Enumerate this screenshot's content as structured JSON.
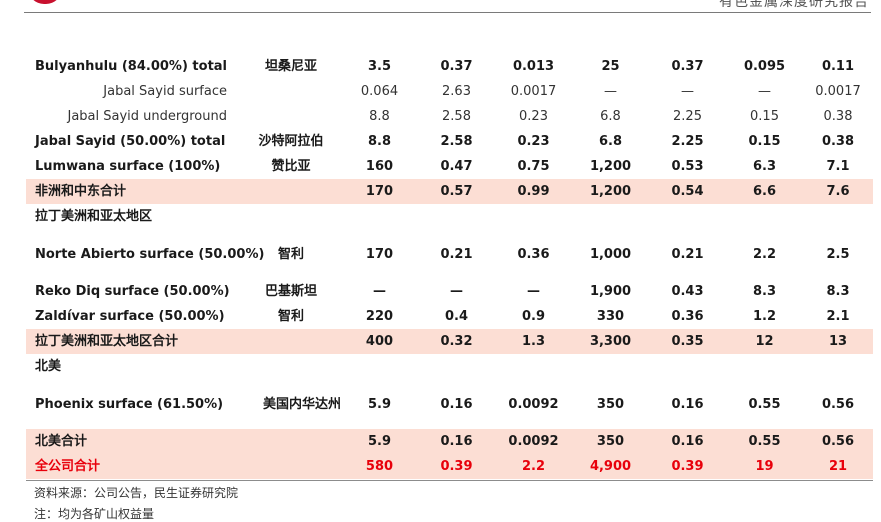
{
  "header": {
    "right_text": "有色金属深度研究报告"
  },
  "rows": [
    {
      "type": "bold",
      "name": "Bulyanhulu (84.00%) total",
      "country": "坦桑尼亚",
      "values": [
        "3.5",
        "0.37",
        "0.013",
        "25",
        "0.37",
        "0.095",
        "0.11"
      ]
    },
    {
      "type": "indent",
      "name": "Jabal Sayid surface",
      "country": "",
      "values": [
        "0.064",
        "2.63",
        "0.0017",
        "—",
        "—",
        "—",
        "0.0017"
      ]
    },
    {
      "type": "indent",
      "name": "Jabal Sayid underground",
      "country": "",
      "values": [
        "8.8",
        "2.58",
        "0.23",
        "6.8",
        "2.25",
        "0.15",
        "0.38"
      ]
    },
    {
      "type": "bold",
      "name": "Jabal Sayid (50.00%) total",
      "country": "沙特阿拉伯",
      "values": [
        "8.8",
        "2.58",
        "0.23",
        "6.8",
        "2.25",
        "0.15",
        "0.38"
      ]
    },
    {
      "type": "bold",
      "name": "Lumwana surface (100%)",
      "country": "赞比亚",
      "values": [
        "160",
        "0.47",
        "0.75",
        "1,200",
        "0.53",
        "6.3",
        "7.1"
      ]
    },
    {
      "type": "subtotal",
      "name": "非洲和中东合计",
      "country": "",
      "values": [
        "170",
        "0.57",
        "0.99",
        "1,200",
        "0.54",
        "6.6",
        "7.6"
      ]
    },
    {
      "type": "section",
      "name": "拉丁美洲和亚太地区",
      "country": "",
      "values": [
        "",
        "",
        "",
        "",
        "",
        "",
        ""
      ]
    },
    {
      "type": "bold-tall",
      "name": "Norte Abierto surface (50.00%)",
      "country": "智利",
      "values": [
        "170",
        "0.21",
        "0.36",
        "1,000",
        "0.21",
        "2.2",
        "2.5"
      ]
    },
    {
      "type": "bold",
      "name": "Reko Diq surface (50.00%)",
      "country": "巴基斯坦",
      "values": [
        "—",
        "—",
        "—",
        "1,900",
        "0.43",
        "8.3",
        "8.3"
      ]
    },
    {
      "type": "bold",
      "name": "Zaldívar surface (50.00%)",
      "country": "智利",
      "values": [
        "220",
        "0.4",
        "0.9",
        "330",
        "0.36",
        "1.2",
        "2.1"
      ]
    },
    {
      "type": "subtotal",
      "name": "拉丁美洲和亚太地区合计",
      "country": "",
      "values": [
        "400",
        "0.32",
        "1.3",
        "3,300",
        "0.35",
        "12",
        "13"
      ]
    },
    {
      "type": "section",
      "name": "北美",
      "country": "",
      "values": [
        "",
        "",
        "",
        "",
        "",
        "",
        ""
      ]
    },
    {
      "type": "bold-tall",
      "name": "Phoenix surface (61.50%)",
      "country": "美国内华达州",
      "values": [
        "5.9",
        "0.16",
        "0.0092",
        "350",
        "0.16",
        "0.55",
        "0.56"
      ]
    },
    {
      "type": "subtotal",
      "name": "北美合计",
      "country": "",
      "values": [
        "5.9",
        "0.16",
        "0.0092",
        "350",
        "0.16",
        "0.55",
        "0.56"
      ]
    },
    {
      "type": "grand",
      "name": "全公司合计",
      "country": "",
      "values": [
        "580",
        "0.39",
        "2.2",
        "4,900",
        "0.39",
        "19",
        "21"
      ]
    }
  ],
  "notes": {
    "source": "资料来源：公司公告，民生证券研究院",
    "footnote": "注：均为各矿山权益量"
  }
}
